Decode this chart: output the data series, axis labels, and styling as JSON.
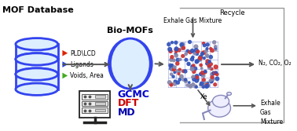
{
  "bg_color": "#ffffff",
  "mof_db_title": "MOF Database",
  "biomofs_title": "Bio-MOFs",
  "legend_items": [
    {
      "label": "PLD\\LCD",
      "color": "#dd2200"
    },
    {
      "label": "Ligands",
      "color": "#2244dd"
    },
    {
      "label": "Voids, Area",
      "color": "#44aa22"
    }
  ],
  "gcmc_text": "GCMC",
  "dft_text": "DFT",
  "md_text": "MD",
  "gcmc_color": "#0000cc",
  "dft_color": "#cc0000",
  "md_color": "#0000aa",
  "recycle_text": "Recycle",
  "exhale_top_text": "Exhale Gas Mixture",
  "n2co2o2_text": "N₂, CO₂, O₂",
  "xe_text": "Xe",
  "exhale_bottom_text": "Exhale\nGas\nMixture",
  "db_color": "#3344ee",
  "db_fill": "#ddeeff",
  "biomof_color": "#3344ee",
  "biomof_fill": "#ddeeff",
  "arrow_color": "#555555",
  "box_color": "#999999",
  "crystal_colors_red": "#cc3333",
  "crystal_colors_blue": "#3355bb",
  "crystal_colors_gray": "#8888aa",
  "mask_color": "#8888bb",
  "mask_fill": "#eeeeff"
}
